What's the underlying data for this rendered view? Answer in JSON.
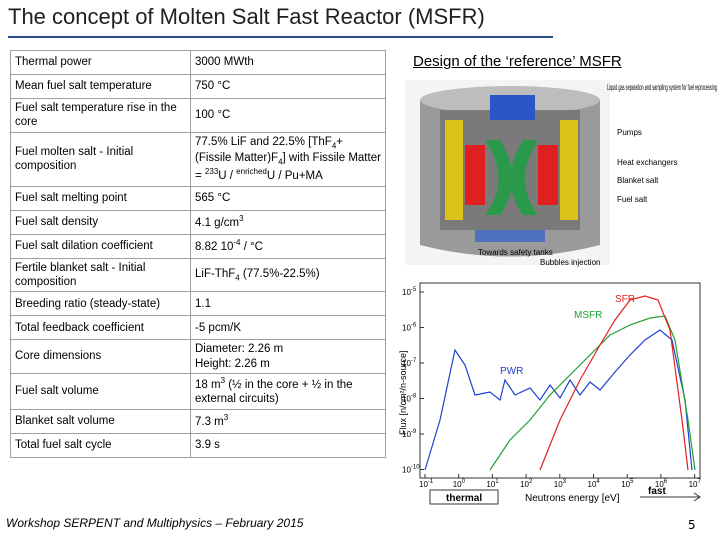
{
  "header": {
    "title": "The concept of Molten Salt Fast Reactor (MSFR)"
  },
  "table": {
    "rows": [
      [
        "Thermal power",
        "3000 MWth"
      ],
      [
        "Mean fuel salt temperature",
        "750 °C"
      ],
      [
        "Fuel salt temperature rise in the core",
        "100 °C"
      ],
      [
        "Fuel molten salt - Initial composition",
        [
          {
            "text": "77.5% LiF and 22.5% [ThF",
            "style": "normal"
          },
          {
            "text": "4",
            "style": "sub"
          },
          {
            "text": "+ (Fissile Matter)F",
            "style": "normal"
          },
          {
            "text": "4",
            "style": "sub"
          },
          {
            "text": "] with Fissile Matter = ",
            "style": "normal"
          },
          {
            "text": "233",
            "style": "sup"
          },
          {
            "text": "U / ",
            "style": "normal"
          },
          {
            "text": "enriched",
            "style": "sup"
          },
          {
            "text": "U / Pu+MA",
            "style": "normal"
          }
        ]
      ],
      [
        "Fuel salt melting point",
        "565 °C"
      ],
      [
        "Fuel salt density",
        [
          {
            "text": "4.1 g/cm",
            "style": "normal"
          },
          {
            "text": "3",
            "style": "sup"
          }
        ]
      ],
      [
        "Fuel salt dilation coefficient",
        [
          {
            "text": "8.82 10",
            "style": "normal"
          },
          {
            "text": "-4",
            "style": "sup"
          },
          {
            "text": " / °C",
            "style": "normal"
          }
        ]
      ],
      [
        "Fertile blanket salt - Initial composition",
        [
          {
            "text": "LiF-ThF",
            "style": "normal"
          },
          {
            "text": "4",
            "style": "sub"
          },
          {
            "text": " (77.5%-22.5%)",
            "style": "normal"
          }
        ]
      ],
      [
        "Breeding ratio (steady-state)",
        "1.1"
      ],
      [
        "Total feedback coefficient",
        "-5 pcm/K"
      ],
      [
        "Core dimensions",
        "Diameter: 2.26 m\nHeight: 2.26 m"
      ],
      [
        "Fuel salt volume",
        [
          {
            "text": "18 m",
            "style": "normal"
          },
          {
            "text": "3",
            "style": "sup"
          },
          {
            "text": " (½ in the core + ½ in the external circuits)",
            "style": "normal"
          }
        ]
      ],
      [
        "Blanket salt volume",
        [
          {
            "text": "7.3 m",
            "style": "normal"
          },
          {
            "text": "3",
            "style": "sup"
          }
        ]
      ],
      [
        "Total fuel salt cycle",
        "3.9 s"
      ]
    ]
  },
  "design": {
    "title": "Design of the ‘reference’ MSFR",
    "labels": [
      "Liquid gas separation and sampling system for fuel reprocessing",
      "Pumps",
      "Heat exchangers",
      "Blanket salt",
      "Fuel salt",
      "Towards safety tanks",
      "Bubbles injection"
    ]
  },
  "spectrum": {
    "curves": [
      "SFR",
      "MSFR",
      "PWR"
    ],
    "y_title": "Flux [n/cm²/n-source]",
    "x_title": "Neutrons energy [eV]",
    "thermal": "thermal",
    "fast": "fast",
    "yticks": [
      {
        "base": "10",
        "exp": "-5"
      },
      {
        "base": "10",
        "exp": "-6"
      },
      {
        "base": "10",
        "exp": "-7"
      },
      {
        "base": "10",
        "exp": "-8"
      },
      {
        "base": "10",
        "exp": "-9"
      },
      {
        "base": "10",
        "exp": "-10"
      }
    ],
    "xticks": [
      {
        "base": "10",
        "exp": "-1"
      },
      {
        "base": "10",
        "exp": "0"
      },
      {
        "base": "10",
        "exp": "1"
      },
      {
        "base": "10",
        "exp": "2"
      },
      {
        "base": "10",
        "exp": "3"
      },
      {
        "base": "10",
        "exp": "4"
      },
      {
        "base": "10",
        "exp": "5"
      },
      {
        "base": "10",
        "exp": "6"
      },
      {
        "base": "10",
        "exp": "7"
      }
    ]
  },
  "footer": {
    "event": "Workshop SERPENT and Multiphysics – February 2015",
    "page": "5"
  }
}
